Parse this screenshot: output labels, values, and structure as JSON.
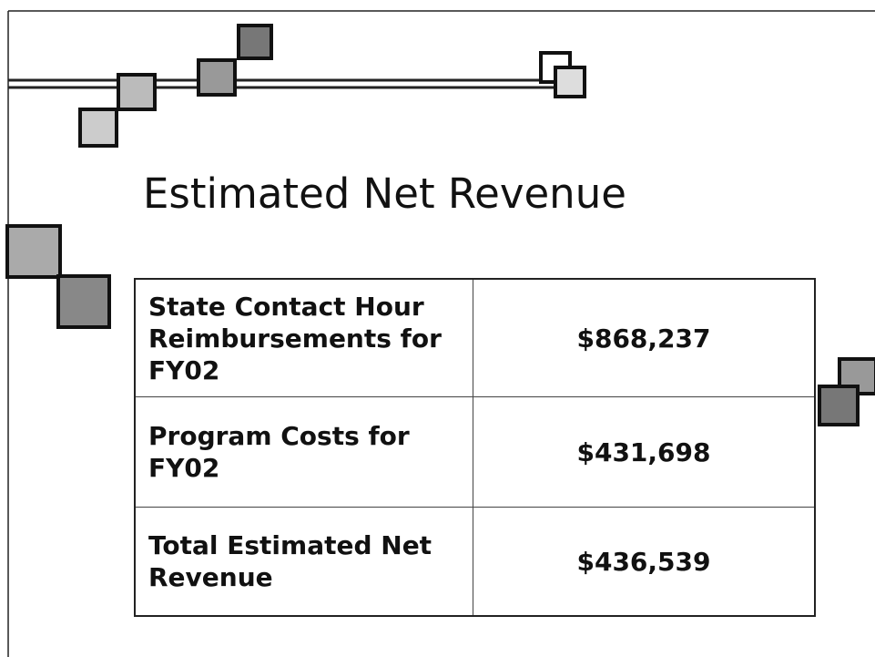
{
  "title": "Estimated Net Revenue",
  "table": {
    "rows": [
      [
        "State Contact Hour Reimbursements for FY02",
        "$868,237"
      ],
      [
        "Program Costs for FY02",
        "$431,698"
      ],
      [
        "Total Estimated Net Revenue",
        "$436,539"
      ]
    ]
  }
}
